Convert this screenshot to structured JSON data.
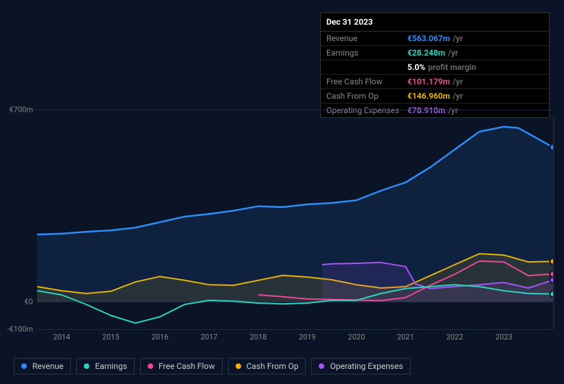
{
  "tooltip": {
    "date": "Dec 31 2023",
    "rows": [
      {
        "label": "Revenue",
        "value": "€563.067m",
        "unit": "/yr",
        "color": "#2d8ef7"
      },
      {
        "label": "Earnings",
        "value": "€28.248m",
        "unit": "/yr",
        "color": "#2dd4bf"
      },
      {
        "label": "",
        "value": "5.0%",
        "unit": "profit margin",
        "color": "#ffffff"
      },
      {
        "label": "Free Cash Flow",
        "value": "€101.179m",
        "unit": "/yr",
        "color": "#ec4899"
      },
      {
        "label": "Cash From Op",
        "value": "€146.960m",
        "unit": "/yr",
        "color": "#eab308"
      },
      {
        "label": "Operating Expenses",
        "value": "€78.910m",
        "unit": "/yr",
        "color": "#a855f7"
      }
    ]
  },
  "chart": {
    "background": "#0b1427",
    "grid_color": "#1e2a42",
    "ymin": -100,
    "ymax": 700,
    "ylabels": [
      {
        "v": 700,
        "text": "€700m"
      },
      {
        "v": 0,
        "text": "€0"
      },
      {
        "v": -100,
        "text": "-€100m"
      }
    ],
    "xticks": [
      0,
      1,
      2,
      3,
      4,
      5,
      6,
      7,
      8,
      9
    ],
    "xlabels": [
      "2014",
      "2015",
      "2016",
      "2017",
      "2018",
      "2019",
      "2020",
      "2021",
      "2022",
      "2023"
    ],
    "cursor_x": 10,
    "series": [
      {
        "name": "Revenue",
        "color": "#2d8ef7",
        "fill": true,
        "width": 2.5,
        "points": [
          [
            -0.5,
            245
          ],
          [
            0,
            248
          ],
          [
            0.5,
            255
          ],
          [
            1,
            260
          ],
          [
            1.5,
            270
          ],
          [
            2,
            290
          ],
          [
            2.5,
            310
          ],
          [
            3,
            320
          ],
          [
            3.5,
            332
          ],
          [
            4,
            348
          ],
          [
            4.5,
            345
          ],
          [
            5,
            355
          ],
          [
            5.5,
            360
          ],
          [
            6,
            370
          ],
          [
            6.5,
            405
          ],
          [
            7,
            435
          ],
          [
            7.5,
            490
          ],
          [
            8,
            555
          ],
          [
            8.5,
            620
          ],
          [
            9,
            638
          ],
          [
            9.3,
            633
          ],
          [
            10,
            563
          ]
        ]
      },
      {
        "name": "Cash From Op",
        "color": "#eab308",
        "fill": true,
        "width": 2,
        "points": [
          [
            -0.5,
            55
          ],
          [
            0,
            40
          ],
          [
            0.5,
            30
          ],
          [
            1,
            38
          ],
          [
            1.5,
            72
          ],
          [
            2,
            92
          ],
          [
            2.5,
            78
          ],
          [
            3,
            62
          ],
          [
            3.5,
            60
          ],
          [
            4,
            78
          ],
          [
            4.5,
            96
          ],
          [
            5,
            90
          ],
          [
            5.5,
            80
          ],
          [
            6,
            62
          ],
          [
            6.5,
            50
          ],
          [
            7,
            55
          ],
          [
            7.5,
            95
          ],
          [
            8,
            135
          ],
          [
            8.5,
            175
          ],
          [
            9,
            170
          ],
          [
            9.5,
            145
          ],
          [
            10,
            147
          ]
        ]
      },
      {
        "name": "Operating Expenses",
        "color": "#a855f7",
        "fill": true,
        "width": 2,
        "points": [
          [
            5.3,
            135
          ],
          [
            5.5,
            138
          ],
          [
            6,
            140
          ],
          [
            6.5,
            143
          ],
          [
            7,
            128
          ],
          [
            7.2,
            65
          ],
          [
            7.5,
            48
          ],
          [
            8,
            55
          ],
          [
            8.5,
            62
          ],
          [
            9,
            70
          ],
          [
            9.5,
            50
          ],
          [
            10,
            79
          ]
        ]
      },
      {
        "name": "Free Cash Flow",
        "color": "#ec4899",
        "fill": false,
        "width": 2,
        "points": [
          [
            4,
            25
          ],
          [
            4.5,
            18
          ],
          [
            5,
            10
          ],
          [
            5.5,
            8
          ],
          [
            6,
            6
          ],
          [
            6.5,
            4
          ],
          [
            7,
            15
          ],
          [
            7.5,
            60
          ],
          [
            8,
            100
          ],
          [
            8.5,
            148
          ],
          [
            9,
            145
          ],
          [
            9.5,
            95
          ],
          [
            10,
            101
          ]
        ]
      },
      {
        "name": "Earnings",
        "color": "#2dd4bf",
        "fill": false,
        "width": 2,
        "points": [
          [
            -0.5,
            40
          ],
          [
            0,
            25
          ],
          [
            0.5,
            -10
          ],
          [
            1,
            -50
          ],
          [
            1.5,
            -78
          ],
          [
            2,
            -55
          ],
          [
            2.5,
            -10
          ],
          [
            3,
            5
          ],
          [
            3.5,
            2
          ],
          [
            4,
            -5
          ],
          [
            4.5,
            -8
          ],
          [
            5,
            -5
          ],
          [
            5.5,
            5
          ],
          [
            6,
            5
          ],
          [
            6.5,
            30
          ],
          [
            7,
            48
          ],
          [
            7.5,
            55
          ],
          [
            8,
            62
          ],
          [
            8.5,
            55
          ],
          [
            9,
            40
          ],
          [
            9.5,
            30
          ],
          [
            10,
            28
          ]
        ]
      }
    ]
  },
  "legend": [
    {
      "label": "Revenue",
      "color": "#2d8ef7"
    },
    {
      "label": "Earnings",
      "color": "#2dd4bf"
    },
    {
      "label": "Free Cash Flow",
      "color": "#ec4899"
    },
    {
      "label": "Cash From Op",
      "color": "#eab308"
    },
    {
      "label": "Operating Expenses",
      "color": "#a855f7"
    }
  ]
}
